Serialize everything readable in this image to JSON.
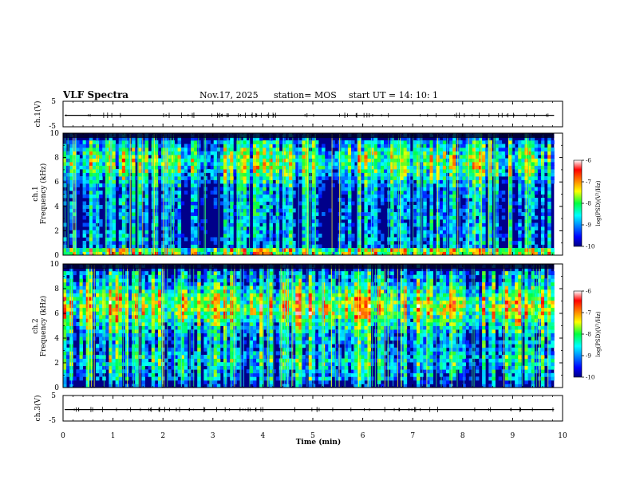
{
  "header": {
    "title": "VLF Spectra",
    "date": "Nov.17, 2025",
    "station": "station= MOS",
    "start": "start  UT =   14: 10: 1"
  },
  "chart_data": [
    {
      "type": "line",
      "name": "ch1-waveform",
      "ylabel": "ch.1(V)",
      "ylim": [
        -5,
        5
      ],
      "yticks": [
        5,
        -5
      ],
      "level": -0.5
    },
    {
      "type": "heatmap",
      "name": "ch1-spectrogram",
      "ylabel_line1": "ch.1",
      "ylabel_line2": "Frequency (kHz)",
      "ylim": [
        0,
        10
      ],
      "yticks": [
        0,
        2,
        4,
        6,
        8,
        10
      ],
      "colorbar": {
        "label": "log(PSD)(V²/Hz)",
        "range": [
          -10,
          -6
        ],
        "ticks": [
          -6,
          -7,
          -8,
          -9,
          -10
        ]
      }
    },
    {
      "type": "heatmap",
      "name": "ch2-spectrogram",
      "ylabel_line1": "ch.2",
      "ylabel_line2": "Frequency (kHz)",
      "ylim": [
        0,
        10
      ],
      "yticks": [
        0,
        2,
        4,
        6,
        8,
        10
      ],
      "colorbar": {
        "label": "log(PSD)(V²/Hz)",
        "range": [
          -10,
          -6
        ],
        "ticks": [
          -6,
          -7,
          -8,
          -9,
          -10
        ]
      }
    },
    {
      "type": "line",
      "name": "ch3-waveform",
      "ylabel": "ch.3(V)",
      "ylim": [
        -5,
        5
      ],
      "yticks": [
        5,
        -5
      ],
      "level": -0.5
    }
  ],
  "xaxis": {
    "label": "Time  (min)",
    "range": [
      0,
      10
    ],
    "ticks": [
      0,
      1,
      2,
      3,
      4,
      5,
      6,
      7,
      8,
      9,
      10
    ],
    "data_end": 9.83
  }
}
